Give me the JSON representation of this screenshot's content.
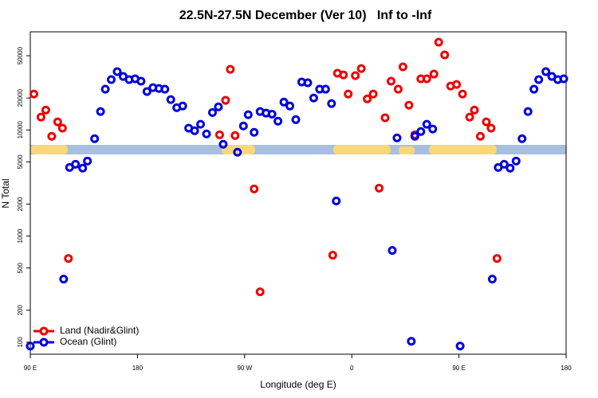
{
  "chart_data": {
    "type": "scatter",
    "title": "22.5N-27.5N December (Ver 10)   Inf to -Inf",
    "x_label": "Longitude (deg E)",
    "y_label": "N Total",
    "xlim": [
      90,
      540
    ],
    "xticks": [
      {
        "value": 90,
        "label": "90 E"
      },
      180,
      {
        "value": 270,
        "label": "90 W"
      },
      {
        "value": 360,
        "label": "0"
      },
      {
        "value": 450,
        "label": "90 E"
      },
      {
        "value": 540,
        "label": "180"
      }
    ],
    "ylim": [
      77,
      84000
    ],
    "ylog": true,
    "yticks": [
      100,
      200,
      500,
      1000,
      2000,
      5000,
      10000,
      20000,
      50000
    ],
    "legend": "bottom-left",
    "series": [
      {
        "name": "Land (Nadir&Glint)",
        "color": "#ee0000",
        "x": [
          93,
          99,
          103,
          108,
          113,
          117,
          122,
          249,
          254,
          258,
          262,
          278,
          283,
          344,
          348,
          353,
          357,
          363,
          368,
          373,
          378,
          383,
          388,
          393,
          399,
          403,
          408,
          413,
          418,
          423,
          429,
          433,
          438,
          443,
          448,
          453,
          459,
          463,
          468,
          473,
          477,
          482
        ],
        "values": [
          21800,
          13200,
          15400,
          8700,
          11900,
          10400,
          615,
          9000,
          19000,
          37200,
          8860,
          2780,
          298,
          660,
          34200,
          33000,
          21800,
          32500,
          37900,
          19600,
          21800,
          2830,
          13000,
          28800,
          24200,
          39300,
          17100,
          9000,
          30300,
          30300,
          33600,
          67100,
          50900,
          25900,
          26800,
          21800,
          13200,
          15400,
          8700,
          11900,
          10400,
          615
        ]
      },
      {
        "name": "Ocean (Glint)",
        "color": "#0000dd",
        "x": [
          90,
          118,
          123,
          128,
          134,
          138,
          144,
          149,
          153,
          158,
          163,
          168,
          173,
          178,
          183,
          188,
          193,
          198,
          203,
          208,
          213,
          218,
          223,
          228,
          233,
          238,
          243,
          248,
          252,
          264,
          269,
          273,
          278,
          283,
          288,
          293,
          298,
          303,
          308,
          313,
          318,
          323,
          328,
          333,
          338,
          343,
          347,
          394,
          398,
          410,
          413,
          418,
          423,
          428,
          451,
          478,
          483,
          488,
          493,
          498,
          503,
          508,
          513,
          517,
          523,
          528,
          533,
          538
        ],
        "values": [
          92,
          393,
          4430,
          4750,
          4360,
          5090,
          8270,
          14900,
          24200,
          29800,
          35400,
          31900,
          29800,
          30300,
          28800,
          23000,
          25000,
          24600,
          24200,
          19300,
          16200,
          16800,
          10400,
          9830,
          11300,
          9170,
          14600,
          16500,
          7320,
          6160,
          10900,
          13900,
          9490,
          14900,
          14400,
          14100,
          12100,
          18300,
          16800,
          12500,
          28300,
          27800,
          20000,
          24200,
          24200,
          17700,
          2140,
          732,
          8410,
          102,
          8700,
          9660,
          11300,
          10200,
          92,
          393,
          4430,
          4750,
          4360,
          5090,
          8270,
          14900,
          24200,
          29800,
          35400,
          31900,
          29800,
          30300
        ]
      }
    ]
  }
}
